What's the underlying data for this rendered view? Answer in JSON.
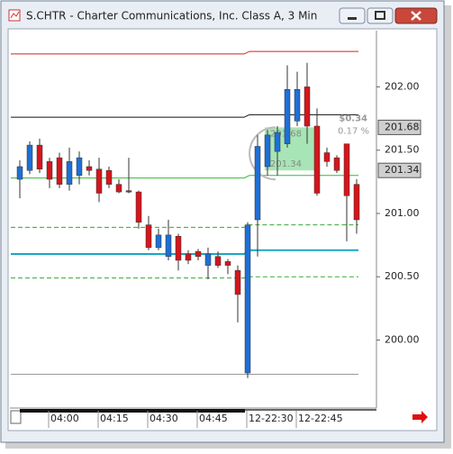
{
  "chart_data": {
    "type": "candlestick",
    "title": "S.CHTR - Charter Communications, Inc. Class A, 3 Min",
    "categories": [
      null,
      null,
      null,
      "04:00",
      null,
      null,
      null,
      null,
      "04:15",
      null,
      null,
      null,
      null,
      "04:30",
      null,
      null,
      null,
      null,
      "04:45",
      null,
      null,
      null,
      null,
      "12-22:30",
      null,
      null,
      null,
      null,
      "12-22:45",
      null,
      null,
      null,
      null,
      null,
      null
    ],
    "open": [
      201.27,
      201.34,
      201.54,
      201.41,
      201.44,
      201.23,
      201.3,
      201.37,
      201.35,
      201.34,
      201.23,
      201.18,
      201.17,
      200.91,
      200.73,
      200.66,
      200.82,
      200.68,
      200.7,
      200.59,
      200.66,
      200.62,
      200.55,
      199.74,
      200.95,
      201.37,
      201.49,
      201.55,
      201.73,
      202.0,
      201.69,
      201.48,
      201.44,
      201.55,
      201.23
    ],
    "high": [
      201.42,
      201.57,
      201.59,
      201.44,
      201.48,
      201.52,
      201.49,
      201.42,
      201.44,
      201.37,
      201.27,
      201.44,
      201.18,
      200.98,
      200.88,
      200.95,
      200.84,
      200.71,
      200.72,
      200.73,
      200.7,
      200.64,
      200.59,
      200.93,
      201.62,
      201.66,
      201.69,
      202.17,
      202.12,
      202.19,
      201.83,
      201.52,
      201.46,
      201.55,
      201.27
    ],
    "low": [
      201.12,
      201.31,
      201.32,
      201.2,
      201.2,
      201.18,
      201.23,
      201.3,
      201.09,
      201.2,
      201.16,
      201.16,
      200.88,
      200.71,
      200.71,
      200.63,
      200.55,
      200.6,
      200.63,
      200.48,
      200.57,
      200.52,
      200.14,
      199.7,
      200.66,
      201.3,
      201.3,
      201.52,
      201.69,
      201.55,
      201.14,
      201.37,
      201.32,
      200.78,
      200.84
    ],
    "close": [
      201.37,
      201.54,
      201.35,
      201.27,
      201.23,
      201.41,
      201.44,
      201.34,
      201.16,
      201.23,
      201.17,
      201.17,
      200.93,
      200.73,
      200.83,
      200.83,
      200.63,
      200.63,
      200.66,
      200.68,
      200.59,
      200.59,
      200.36,
      200.91,
      201.53,
      201.62,
      201.64,
      201.98,
      201.98,
      201.69,
      201.16,
      201.41,
      201.34,
      201.14,
      200.95
    ],
    "up_color": "#1e6fd6",
    "down_color": "#d4161c",
    "ylim": [
      199.47,
      202.43
    ],
    "yticks": [
      {
        "value": 202,
        "label": "202.00"
      },
      {
        "value": 201.5,
        "label": "201.50"
      },
      {
        "value": 201,
        "label": "201.00"
      },
      {
        "value": 200.5,
        "label": "200.50"
      },
      {
        "value": 200,
        "label": "200.00"
      }
    ],
    "lines": [
      {
        "color": "#d42020",
        "values": [
          202.26,
          202.28
        ],
        "dashed": false
      },
      {
        "color": "#111111",
        "values": [
          201.76,
          201.78
        ],
        "dashed": false
      },
      {
        "color": "#33bb33",
        "values": [
          201.28,
          201.3
        ],
        "dashed": false
      },
      {
        "color": "#33aa33",
        "values": [
          200.89,
          200.91
        ],
        "dashed": true
      },
      {
        "color": "#1aa6c4",
        "values": [
          200.68,
          200.71
        ],
        "dashed": false
      },
      {
        "color": "#33aa33",
        "values": [
          200.49,
          200.5
        ],
        "dashed": true
      },
      {
        "color": "#999999",
        "values": [
          199.73,
          199.73
        ],
        "dashed": false
      }
    ],
    "price_markers": [
      201.68,
      201.34
    ],
    "measurement": {
      "from": 201.34,
      "to": 201.68,
      "change_label": "$0.34",
      "percent_label": "0.17 %"
    }
  }
}
